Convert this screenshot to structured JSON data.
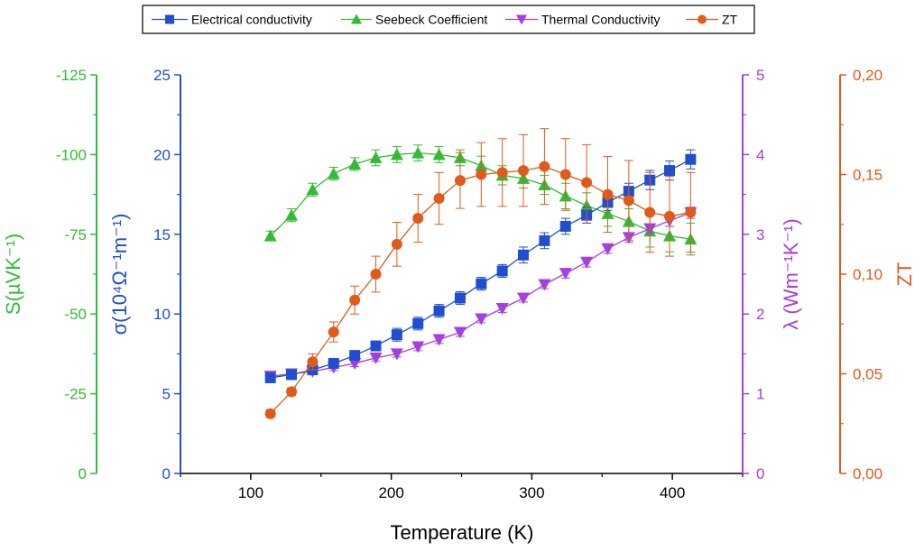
{
  "chart_data": {
    "type": "line",
    "legend_placement": "top",
    "xlabel": "Temperature (K)",
    "xlim": [
      50,
      450
    ],
    "x_ticks": [
      100,
      200,
      300,
      400
    ],
    "grid": false,
    "axes": [
      {
        "id": "S",
        "title": "S(µVK⁻¹)",
        "color": "#33bb33",
        "lim": [
          0,
          -125
        ],
        "ticks": [
          {
            "v": 0,
            "label": "0"
          },
          {
            "v": -25,
            "label": "-25"
          },
          {
            "v": -50,
            "label": "-50"
          },
          {
            "v": -75,
            "label": "-75"
          },
          {
            "v": -100,
            "label": "-100"
          },
          {
            "v": -125,
            "label": "-125"
          }
        ]
      },
      {
        "id": "sigma",
        "title": "σ(10⁴Ω⁻¹m⁻¹)",
        "color": "#1f4fd0",
        "lim": [
          0,
          25
        ],
        "ticks": [
          {
            "v": 0,
            "label": "0"
          },
          {
            "v": 5,
            "label": "5"
          },
          {
            "v": 10,
            "label": "10"
          },
          {
            "v": 15,
            "label": "15"
          },
          {
            "v": 20,
            "label": "20"
          },
          {
            "v": 25,
            "label": "25"
          }
        ]
      },
      {
        "id": "lambda",
        "title": "λ (Wm⁻¹K⁻¹)",
        "color": "#a63ee0",
        "lim": [
          0,
          5
        ],
        "ticks": [
          {
            "v": 0,
            "label": "0"
          },
          {
            "v": 1,
            "label": "1"
          },
          {
            "v": 2,
            "label": "2"
          },
          {
            "v": 3,
            "label": "3"
          },
          {
            "v": 4,
            "label": "4"
          },
          {
            "v": 5,
            "label": "5"
          }
        ]
      },
      {
        "id": "ZT",
        "title": "ZT",
        "color": "#e05a1a",
        "lim": [
          0,
          0.2
        ],
        "ticks": [
          {
            "v": 0,
            "label": "0,00"
          },
          {
            "v": 0.05,
            "label": "0,05"
          },
          {
            "v": 0.1,
            "label": "0,10"
          },
          {
            "v": 0.15,
            "label": "0,15"
          },
          {
            "v": 0.2,
            "label": "0,20"
          }
        ]
      }
    ],
    "x": [
      114,
      129,
      144,
      159,
      174,
      189,
      204,
      219,
      234,
      249,
      264,
      279,
      294,
      309,
      324,
      339,
      354,
      369,
      384,
      398,
      413
    ],
    "series": [
      {
        "name": "Electrical conductivity",
        "axis": "sigma",
        "marker": "square",
        "color": "#1f4fd0",
        "values": [
          6.0,
          6.2,
          6.5,
          6.9,
          7.4,
          8.0,
          8.7,
          9.4,
          10.2,
          11.0,
          11.9,
          12.7,
          13.7,
          14.6,
          15.5,
          16.2,
          17.0,
          17.7,
          18.4,
          19.0,
          19.7
        ],
        "err": [
          0.3,
          0.3,
          0.3,
          0.3,
          0.3,
          0.3,
          0.4,
          0.4,
          0.4,
          0.4,
          0.4,
          0.4,
          0.5,
          0.5,
          0.5,
          0.5,
          0.5,
          0.5,
          0.6,
          0.6,
          0.6
        ]
      },
      {
        "name": "Seebeck Coefficient",
        "axis": "S",
        "marker": "triangle-up",
        "color": "#33bb33",
        "values": [
          -74.5,
          -81,
          -89,
          -94,
          -97,
          -99,
          -100,
          -100.5,
          -100,
          -99,
          -96.5,
          -93.5,
          -92.5,
          -90.5,
          -87,
          -84,
          -81.5,
          -79,
          -76,
          -74.5,
          -73.5
        ],
        "err": [
          1.5,
          2,
          2,
          2,
          2,
          2.5,
          2.5,
          2.5,
          2.5,
          2.5,
          3,
          3,
          3,
          3,
          4,
          4,
          4,
          4,
          5,
          5,
          5
        ]
      },
      {
        "name": "Thermal Conductivity",
        "axis": "lambda",
        "marker": "triangle-down",
        "color": "#a63ee0",
        "values": [
          1.22,
          1.25,
          1.28,
          1.33,
          1.38,
          1.45,
          1.5,
          1.59,
          1.68,
          1.77,
          1.94,
          2.07,
          2.2,
          2.37,
          2.51,
          2.65,
          2.82,
          2.96,
          3.07,
          3.17,
          3.27
        ],
        "err": [
          0.04,
          0.04,
          0.04,
          0.04,
          0.04,
          0.04,
          0.04,
          0.05,
          0.05,
          0.05,
          0.05,
          0.05,
          0.05,
          0.05,
          0.06,
          0.06,
          0.06,
          0.06,
          0.06,
          0.07,
          0.07
        ]
      },
      {
        "name": "ZT",
        "axis": "ZT",
        "marker": "circle",
        "color": "#e05a1a",
        "values": [
          0.03,
          0.041,
          0.056,
          0.071,
          0.087,
          0.1,
          0.115,
          0.128,
          0.138,
          0.147,
          0.15,
          0.151,
          0.152,
          0.154,
          0.15,
          0.146,
          0.14,
          0.137,
          0.131,
          0.129,
          0.131
        ],
        "err": [
          0.002,
          0.002,
          0.004,
          0.005,
          0.007,
          0.009,
          0.011,
          0.012,
          0.013,
          0.014,
          0.016,
          0.017,
          0.018,
          0.019,
          0.018,
          0.019,
          0.019,
          0.02,
          0.02,
          0.02,
          0.02
        ]
      }
    ]
  }
}
